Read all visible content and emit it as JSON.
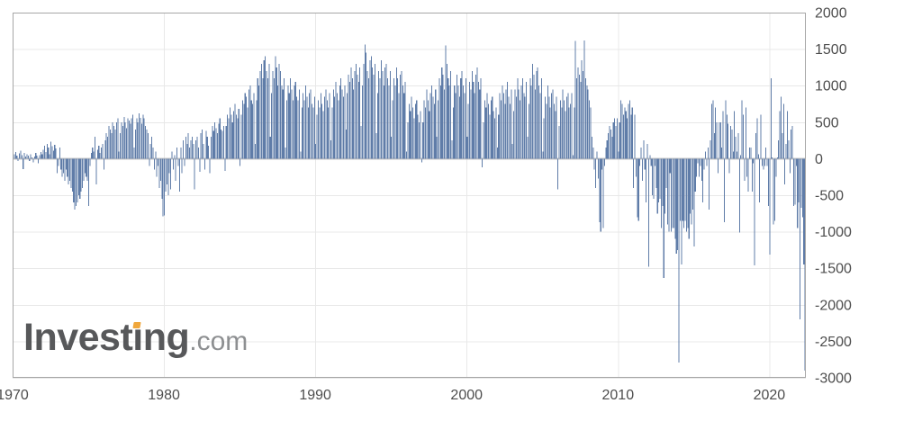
{
  "logo": {
    "part1": "Invest",
    "i_dotless": "ı",
    "part2": "ng",
    "suffix": ".com"
  },
  "colors": {
    "bar": "#5f7ca8",
    "grid": "#e8e8e8",
    "zero_line": "#c9c9c9",
    "plot_border": "#a6a6a6",
    "axis_text": "#4d4d4d",
    "logo_text": "#57585a",
    "logo_suffix": "#8d8f91",
    "logo_dot": "#f0a73c",
    "background": "#ffffff"
  },
  "chart_data": {
    "type": "bar",
    "title": "",
    "xlabel": "",
    "ylabel": "",
    "frequency": "monthly",
    "x_start_year": 1970,
    "x_tick_years": [
      1970,
      1980,
      1990,
      2000,
      2010,
      2020
    ],
    "y_ticks": [
      2000,
      1500,
      1000,
      500,
      0,
      -500,
      -1000,
      -1500,
      -2000,
      -2500,
      -3000
    ],
    "ylim": [
      -3000,
      2000
    ],
    "grid": true,
    "legend": "none",
    "values": [
      150,
      60,
      90,
      40,
      -30,
      70,
      110,
      50,
      -140,
      80,
      30,
      60,
      40,
      -30,
      60,
      20,
      -50,
      30,
      80,
      40,
      -60,
      50,
      90,
      60,
      120,
      180,
      90,
      200,
      150,
      60,
      230,
      170,
      110,
      190,
      140,
      -200,
      -100,
      150,
      -150,
      -250,
      -200,
      -300,
      -150,
      -250,
      -350,
      -300,
      -400,
      -450,
      -600,
      -700,
      -650,
      -600,
      -500,
      -550,
      -450,
      -400,
      -300,
      -200,
      -250,
      -300,
      -650,
      -100,
      80,
      150,
      100,
      300,
      -350,
      120,
      180,
      80,
      150,
      200,
      -150,
      250,
      350,
      300,
      450,
      400,
      350,
      500,
      450,
      400,
      500,
      550,
      100,
      350,
      500,
      450,
      570,
      500,
      420,
      550,
      520,
      480,
      550,
      600,
      150,
      400,
      550,
      500,
      620,
      560,
      480,
      600,
      550,
      450,
      400,
      350,
      -100,
      200,
      300,
      150,
      -150,
      100,
      -250,
      -100,
      -400,
      -300,
      -550,
      -790,
      -780,
      -450,
      -350,
      -500,
      -200,
      -420,
      100,
      -150,
      50,
      -300,
      150,
      -100,
      -450,
      150,
      -200,
      250,
      -100,
      300,
      200,
      350,
      150,
      250,
      300,
      200,
      -420,
      250,
      300,
      150,
      -180,
      350,
      400,
      200,
      -150,
      380,
      300,
      180,
      -200,
      300,
      450,
      380,
      500,
      420,
      350,
      480,
      550,
      400,
      380,
      450,
      -170,
      450,
      600,
      550,
      700,
      600,
      500,
      650,
      750,
      600,
      550,
      680,
      -100,
      600,
      800,
      750,
      900,
      850,
      700,
      950,
      1000,
      800,
      750,
      900,
      200,
      800,
      1100,
      1000,
      1200,
      1300,
      1100,
      1350,
      1400,
      1200,
      1100,
      1300,
      300,
      900,
      1200,
      1100,
      1400,
      1250,
      1000,
      1300,
      1200,
      1000,
      950,
      1100,
      150,
      800,
      1000,
      900,
      1100,
      950,
      800,
      1000,
      1050,
      850,
      800,
      950,
      100,
      700,
      900,
      800,
      1000,
      850,
      700,
      900,
      950,
      750,
      700,
      850,
      200,
      600,
      800,
      700,
      900,
      750,
      650,
      850,
      950,
      800,
      700,
      900,
      250,
      700,
      950,
      850,
      1050,
      900,
      800,
      1000,
      1100,
      950,
      850,
      1000,
      400,
      900,
      1150,
      1050,
      1250,
      1100,
      950,
      1200,
      1300,
      1150,
      1050,
      1250,
      450,
      1000,
      1300,
      1560,
      1450,
      1200,
      1100,
      1350,
      1400,
      1250,
      1150,
      1300,
      350,
      900,
      1200,
      1100,
      1350,
      1200,
      1000,
      1250,
      1300,
      1100,
      1000,
      1200,
      300,
      800,
      1100,
      1000,
      1250,
      1100,
      900,
      1150,
      1200,
      1000,
      900,
      1050,
      100,
      500,
      750,
      650,
      850,
      700,
      550,
      750,
      800,
      600,
      500,
      650,
      -50,
      500,
      800,
      700,
      950,
      800,
      650,
      900,
      1000,
      850,
      750,
      950,
      300,
      800,
      1100,
      1000,
      1250,
      1150,
      950,
      1550,
      1300,
      1100,
      1000,
      1200,
      250,
      700,
      1000,
      900,
      1150,
      1000,
      850,
      1100,
      1200,
      1000,
      900,
      1100,
      300,
      750,
      1050,
      950,
      1200,
      1050,
      900,
      1150,
      1250,
      1050,
      950,
      1100,
      -120,
      500,
      800,
      700,
      900,
      750,
      600,
      800,
      850,
      650,
      550,
      700,
      150,
      600,
      900,
      800,
      1000,
      900,
      750,
      950,
      1050,
      850,
      750,
      950,
      200,
      650,
      950,
      850,
      1100,
      950,
      800,
      1000,
      1100,
      900,
      850,
      1050,
      300,
      750,
      1100,
      1000,
      1300,
      1150,
      950,
      1200,
      1250,
      1000,
      900,
      1100,
      100,
      550,
      850,
      750,
      1000,
      850,
      700,
      900,
      950,
      750,
      650,
      850,
      -420,
      450,
      800,
      700,
      950,
      800,
      650,
      850,
      900,
      700,
      750,
      900,
      50,
      700,
      1615,
      1100,
      1250,
      1150,
      1050,
      1350,
      1200,
      1620,
      1100,
      1000,
      950,
      800,
      700,
      300,
      150,
      -150,
      -400,
      100,
      -270,
      -870,
      -1000,
      -150,
      -950,
      -100,
      150,
      250,
      350,
      450,
      400,
      300,
      500,
      550,
      450,
      550,
      100,
      500,
      800,
      750,
      600,
      700,
      650,
      550,
      750,
      800,
      600,
      700,
      -400,
      600,
      -250,
      -800,
      -850,
      -100,
      150,
      -300,
      250,
      -150,
      -600,
      200,
      -1480,
      50,
      -100,
      -500,
      -550,
      -100,
      -400,
      -750,
      -600,
      -550,
      -950,
      -650,
      -1630,
      -750,
      -400,
      -900,
      -1000,
      -200,
      -1000,
      -950,
      -950,
      -1100,
      -1300,
      -1250,
      -2790,
      -850,
      -1450,
      -850,
      -950,
      -850,
      -1000,
      -950,
      -1100,
      -750,
      -900,
      -700,
      -1200,
      -450,
      -250,
      -60,
      -250,
      -100,
      -300,
      -600,
      -150,
      100,
      -100,
      150,
      -700,
      250,
      750,
      800,
      350,
      700,
      500,
      -200,
      500,
      500,
      150,
      650,
      -870,
      800,
      600,
      480,
      -200,
      450,
      400,
      100,
      650,
      300,
      100,
      350,
      -1010,
      50,
      800,
      600,
      -300,
      700,
      -250,
      -450,
      150,
      150,
      -450,
      -60,
      -1460,
      350,
      550,
      60,
      -600,
      600,
      -100,
      -150,
      -100,
      150,
      -100,
      -650,
      -1310,
      1100,
      20,
      -900,
      -850,
      -250,
      20,
      250,
      650,
      850,
      350,
      750,
      -350,
      200,
      650,
      250,
      -200,
      400,
      450,
      -650,
      -630,
      -100,
      -950,
      -600,
      -2200,
      -670,
      -800,
      -1450,
      -2900
    ]
  }
}
